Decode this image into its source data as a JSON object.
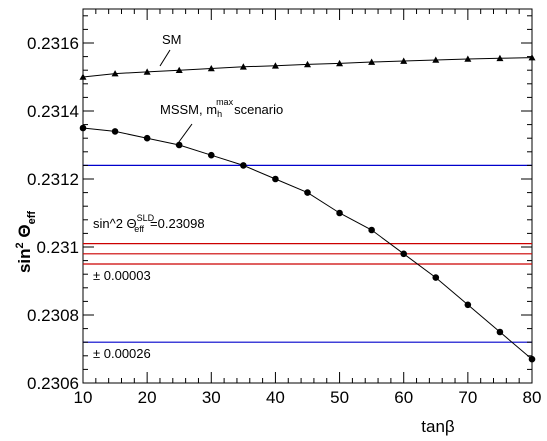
{
  "chart_data": {
    "type": "line",
    "xlabel": "tanβ",
    "ylabel": "sin² Θeff",
    "xlim": [
      10,
      80
    ],
    "ylim": [
      0.2306,
      0.2317
    ],
    "x_ticks": [
      10,
      20,
      30,
      40,
      50,
      60,
      70,
      80
    ],
    "x_tick_labels": [
      "10",
      "20",
      "30",
      "40",
      "50",
      "60",
      "70",
      "80"
    ],
    "y_ticks": [
      0.2306,
      0.2308,
      0.231,
      0.2312,
      0.2314,
      0.2316
    ],
    "y_tick_labels": [
      "0.2306",
      "0.2308",
      "0.231",
      "0.2312",
      "0.2314",
      "0.2316"
    ],
    "grid": false,
    "series": [
      {
        "name": "SM",
        "marker": "triangle",
        "color": "#000000",
        "x": [
          10,
          15,
          20,
          25,
          30,
          35,
          40,
          45,
          50,
          55,
          60,
          65,
          70,
          75,
          80
        ],
        "values": [
          0.2315,
          0.23151,
          0.231515,
          0.23152,
          0.231525,
          0.23153,
          0.231533,
          0.231537,
          0.23154,
          0.231544,
          0.231547,
          0.23155,
          0.231553,
          0.231555,
          0.231557
        ]
      },
      {
        "name_text": "MSSM, m",
        "name_sup": "max",
        "name_sub": "h",
        "name_tail": "scenario",
        "marker": "circle",
        "color": "#000000",
        "x": [
          10,
          15,
          20,
          25,
          30,
          35,
          40,
          45,
          50,
          55,
          60,
          65,
          70,
          75,
          80
        ],
        "values": [
          0.23135,
          0.23134,
          0.23132,
          0.2313,
          0.23127,
          0.23124,
          0.2312,
          0.23116,
          0.2311,
          0.23105,
          0.23098,
          0.23091,
          0.23083,
          0.23075,
          0.23067
        ]
      }
    ],
    "hlines": [
      {
        "value": 0.23124,
        "color": "#0000cc"
      },
      {
        "value": 0.23101,
        "color": "#cc0000"
      },
      {
        "value": 0.23098,
        "color": "#cc0000"
      },
      {
        "value": 0.23095,
        "color": "#cc0000"
      },
      {
        "value": 0.23072,
        "color": "#0000cc"
      }
    ],
    "annotations": {
      "sm_label": "SM",
      "sld_prefix": "sin^2 Θ",
      "sld_sub": "eff",
      "sld_sup": "SLD",
      "sld_value": "=0.23098",
      "red_band": "± 0.00003",
      "blue_band": "± 0.00026"
    },
    "colors": {
      "red": "#cc0000",
      "blue": "#0000cc"
    }
  }
}
